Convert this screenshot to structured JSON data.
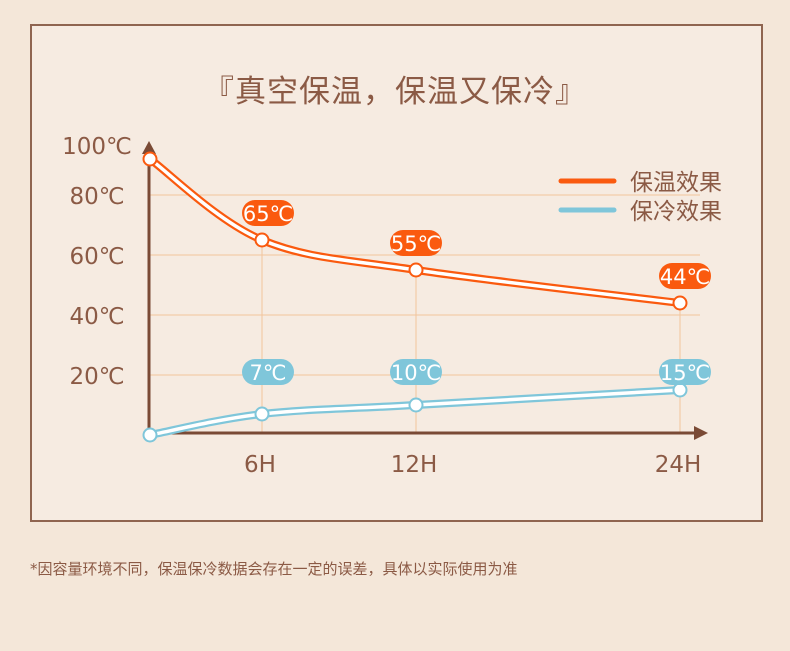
{
  "title": "『真空保温，保温又保冷』",
  "footnote": "*因容量环境不同，保温保冷数据会存在一定的误差，具体以实际使用为准",
  "chart_data": {
    "type": "line",
    "categories": [
      "",
      "6H",
      "12H",
      "24H"
    ],
    "y_tick_labels": [
      "100℃",
      "80℃",
      "60℃",
      "40℃",
      "20℃"
    ],
    "y_ticks": [
      100,
      80,
      60,
      40,
      20
    ],
    "ylim": [
      0,
      100
    ],
    "grid": true,
    "legend_position": "top-right",
    "series": [
      {
        "name": "保温效果",
        "color": "#fa5a0f",
        "values": [
          92,
          65,
          55,
          44
        ],
        "labels": [
          "",
          "65℃",
          "55℃",
          "44℃"
        ]
      },
      {
        "name": "保冷效果",
        "color": "#7fc6da",
        "values": [
          0,
          7,
          10,
          15
        ],
        "labels": [
          "",
          "7℃",
          "10℃",
          "15℃"
        ]
      }
    ],
    "colors": {
      "axis": "#7a4a35",
      "grid": "#f2c49c",
      "text": "#8b5a45"
    }
  }
}
